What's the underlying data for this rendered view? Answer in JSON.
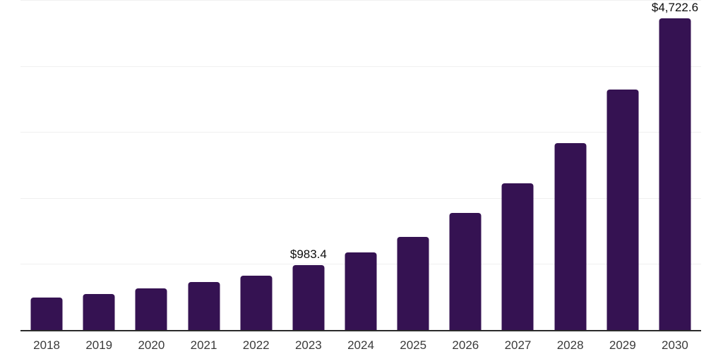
{
  "chart_data": {
    "type": "bar",
    "title": "",
    "xlabel": "",
    "ylabel": "",
    "categories": [
      "2018",
      "2019",
      "2020",
      "2021",
      "2022",
      "2023",
      "2024",
      "2025",
      "2026",
      "2027",
      "2028",
      "2029",
      "2030"
    ],
    "values": [
      495,
      550,
      632,
      730,
      820,
      983.4,
      1175,
      1415,
      1770,
      2220,
      2830,
      3645,
      4722.6
    ],
    "data_labels": [
      "",
      "",
      "",
      "",
      "",
      "$983.4",
      "",
      "",
      "",
      "",
      "",
      "",
      "$4,722.6"
    ],
    "ylim": [
      0,
      5000
    ],
    "grid": true,
    "grid_interval": 1000,
    "legend": "none",
    "colors": {
      "bar": "#351252",
      "grid": "#f0f0f0",
      "axis": "#2b2b2b",
      "value_label": "#0d0d0d",
      "tick_label": "#3a3a3a",
      "background": "#ffffff"
    }
  }
}
